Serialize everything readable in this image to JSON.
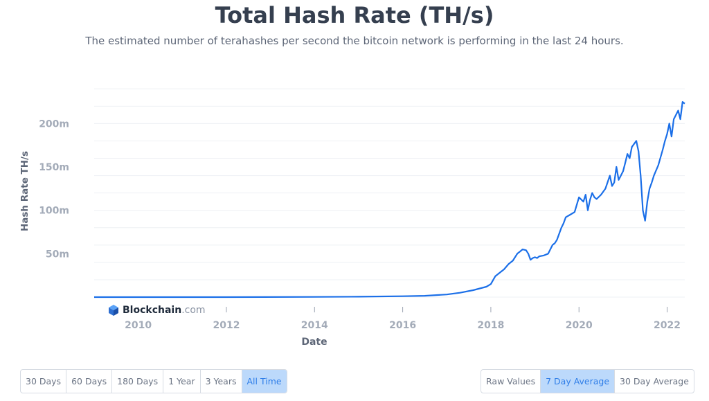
{
  "title": "Total Hash Rate (TH/s)",
  "subtitle": "The estimated number of terahashes per second the bitcoin network is performing in the last 24 hours.",
  "brand": {
    "name": "Blockchain",
    "suffix": ".com",
    "icon": "blockchain-cube-icon"
  },
  "range_buttons": [
    {
      "label": "30 Days",
      "active": false
    },
    {
      "label": "60 Days",
      "active": false
    },
    {
      "label": "180 Days",
      "active": false
    },
    {
      "label": "1 Year",
      "active": false
    },
    {
      "label": "3 Years",
      "active": false
    },
    {
      "label": "All Time",
      "active": true
    }
  ],
  "average_buttons": [
    {
      "label": "Raw Values",
      "active": false
    },
    {
      "label": "7 Day Average",
      "active": true
    },
    {
      "label": "30 Day Average",
      "active": false
    }
  ],
  "colors": {
    "line": "#1b6fe8",
    "active_bg": "#bcd9fb",
    "active_text": "#2f7ee8"
  },
  "chart_data": {
    "type": "line",
    "title": "Total Hash Rate (TH/s)",
    "xlabel": "Date",
    "ylabel": "Hash Rate TH/s",
    "x_ticks": [
      "2010",
      "2012",
      "2014",
      "2016",
      "2018",
      "2020",
      "2022"
    ],
    "y_ticks": [
      "50m",
      "100m",
      "150m",
      "200m"
    ],
    "y_tick_values": [
      50,
      100,
      150,
      200
    ],
    "y_unit": "millions TH/s",
    "xlim": [
      2009.0,
      2022.4
    ],
    "ylim": [
      0,
      245
    ],
    "grid": true,
    "series": [
      {
        "x": [
          2009.0,
          2012.0,
          2014.0,
          2015.0,
          2016.0,
          2016.5,
          2017.0,
          2017.3,
          2017.6,
          2017.9,
          2018.0,
          2018.1,
          2018.2,
          2018.3,
          2018.4,
          2018.5,
          2018.6,
          2018.65,
          2018.72,
          2018.8,
          2018.85,
          2018.9,
          2018.95,
          2019.0,
          2019.05,
          2019.1,
          2019.2,
          2019.3,
          2019.4,
          2019.45,
          2019.5,
          2019.55,
          2019.6,
          2019.65,
          2019.7,
          2019.8,
          2019.9,
          2020.0,
          2020.1,
          2020.15,
          2020.2,
          2020.25,
          2020.3,
          2020.35,
          2020.4,
          2020.5,
          2020.6,
          2020.7,
          2020.75,
          2020.8,
          2020.85,
          2020.9,
          2021.0,
          2021.05,
          2021.1,
          2021.15,
          2021.2,
          2021.3,
          2021.35,
          2021.4,
          2021.45,
          2021.5,
          2021.55,
          2021.6,
          2021.65,
          2021.7,
          2021.8,
          2021.9,
          2021.95,
          2022.0,
          2022.05,
          2022.1,
          2022.15,
          2022.2,
          2022.25,
          2022.3,
          2022.35,
          2022.4
        ],
        "y": [
          0,
          0,
          0.2,
          0.5,
          1,
          1.5,
          3,
          5,
          8,
          12,
          15,
          24,
          28,
          32,
          38,
          42,
          50,
          52,
          55,
          54,
          50,
          43,
          45,
          46,
          45,
          47,
          48,
          50,
          60,
          62,
          66,
          73,
          80,
          85,
          92,
          95,
          98,
          115,
          110,
          118,
          100,
          112,
          120,
          115,
          113,
          118,
          125,
          140,
          128,
          132,
          150,
          135,
          145,
          155,
          165,
          160,
          173,
          180,
          168,
          140,
          100,
          88,
          110,
          125,
          132,
          140,
          152,
          170,
          180,
          188,
          200,
          185,
          205,
          210,
          215,
          205,
          225,
          223
        ]
      }
    ]
  }
}
